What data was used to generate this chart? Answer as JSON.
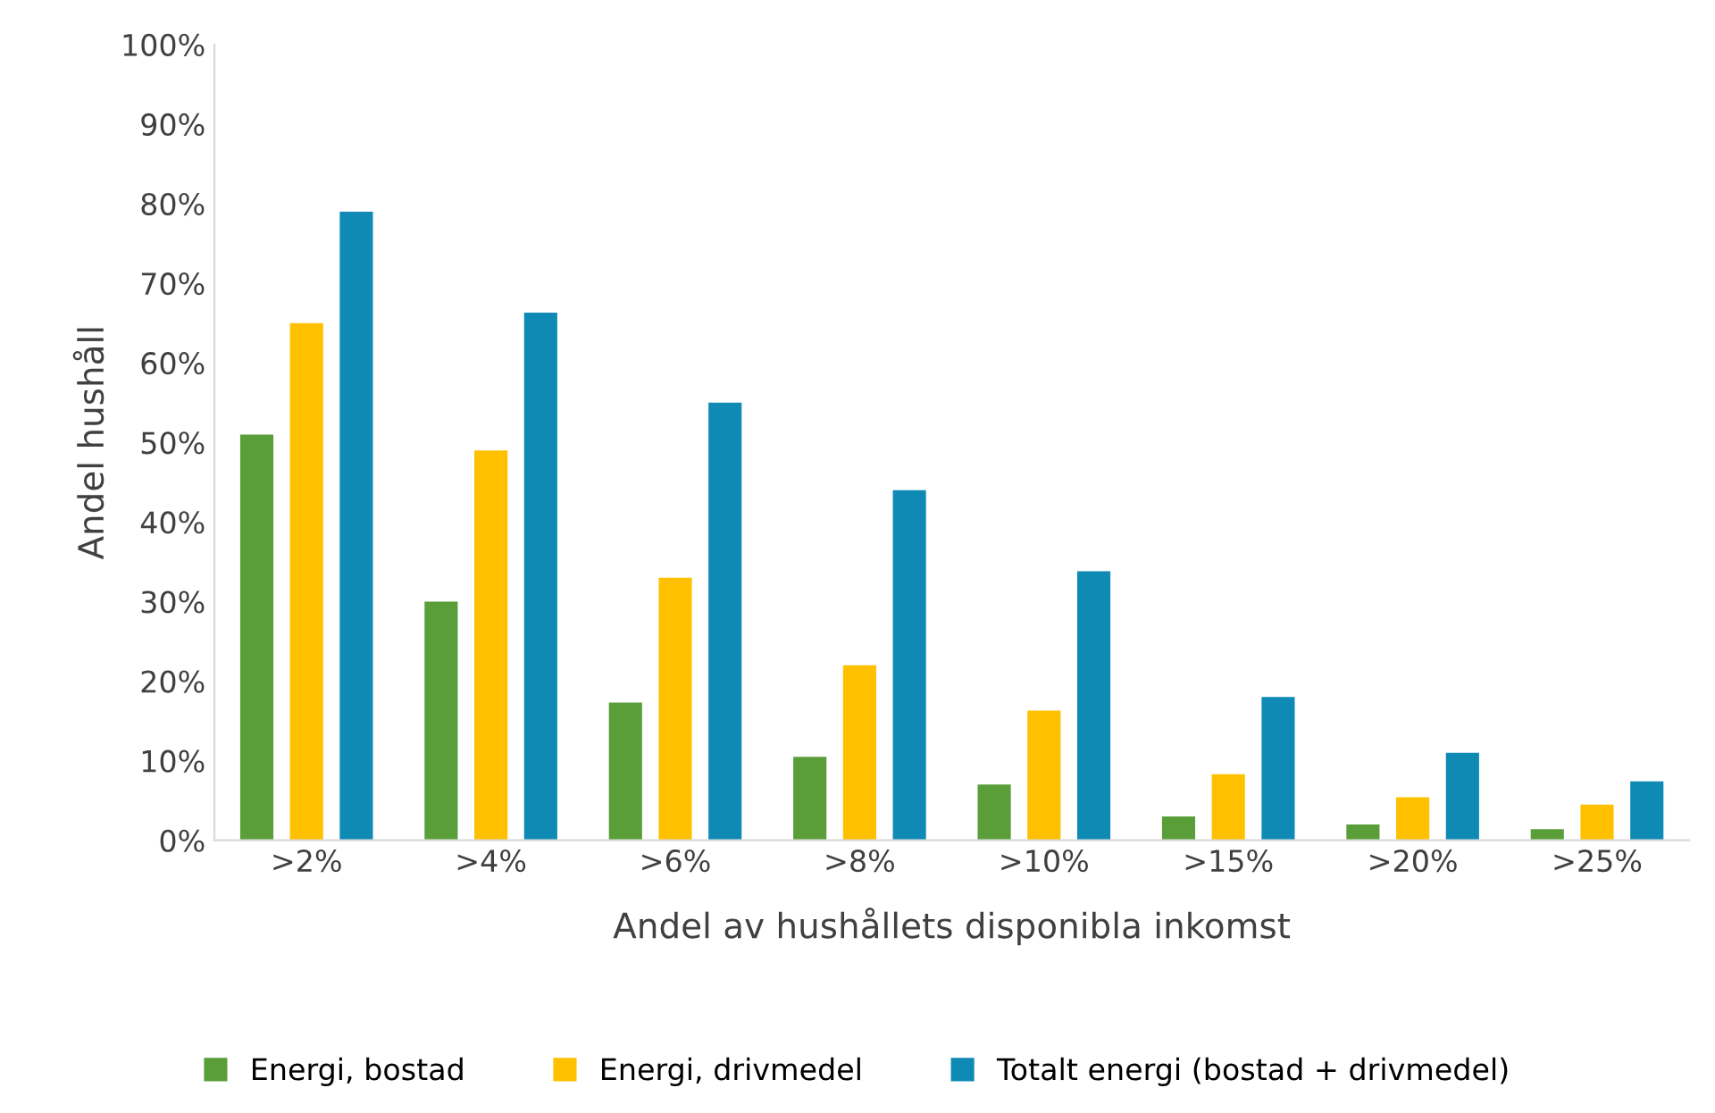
{
  "chart_data": {
    "type": "bar",
    "xlabel": "Andel av hushållets disponibla inkomst",
    "ylabel": "Andel hushåll",
    "categories": [
      ">2%",
      ">4%",
      ">6%",
      ">8%",
      ">10%",
      ">15%",
      ">20%",
      ">25%"
    ],
    "series": [
      {
        "name": "Energi, bostad",
        "color": "#5a9e3a",
        "values": [
          51,
          30,
          17.3,
          10.5,
          7,
          3,
          2,
          1.4
        ]
      },
      {
        "name": "Energi, drivmedel",
        "color": "#ffc000",
        "values": [
          65,
          49,
          33,
          22,
          16.3,
          8.3,
          5.4,
          4.5
        ]
      },
      {
        "name": "Totalt energi (bostad + drivmedel)",
        "color": "#0f8ab5",
        "values": [
          79,
          66.3,
          55,
          44,
          33.8,
          18,
          11,
          7.4
        ]
      }
    ],
    "ylim": [
      0,
      100
    ],
    "yticks": [
      {
        "value": 0,
        "label": "0%"
      },
      {
        "value": 10,
        "label": "10%"
      },
      {
        "value": 20,
        "label": "20%"
      },
      {
        "value": 30,
        "label": "30%"
      },
      {
        "value": 40,
        "label": "40%"
      },
      {
        "value": 50,
        "label": "50%"
      },
      {
        "value": 60,
        "label": "60%"
      },
      {
        "value": 70,
        "label": "70%"
      },
      {
        "value": 80,
        "label": "80%"
      },
      {
        "value": 90,
        "label": "90%"
      },
      {
        "value": 100,
        "label": "100%"
      }
    ],
    "legend": "bottom"
  }
}
